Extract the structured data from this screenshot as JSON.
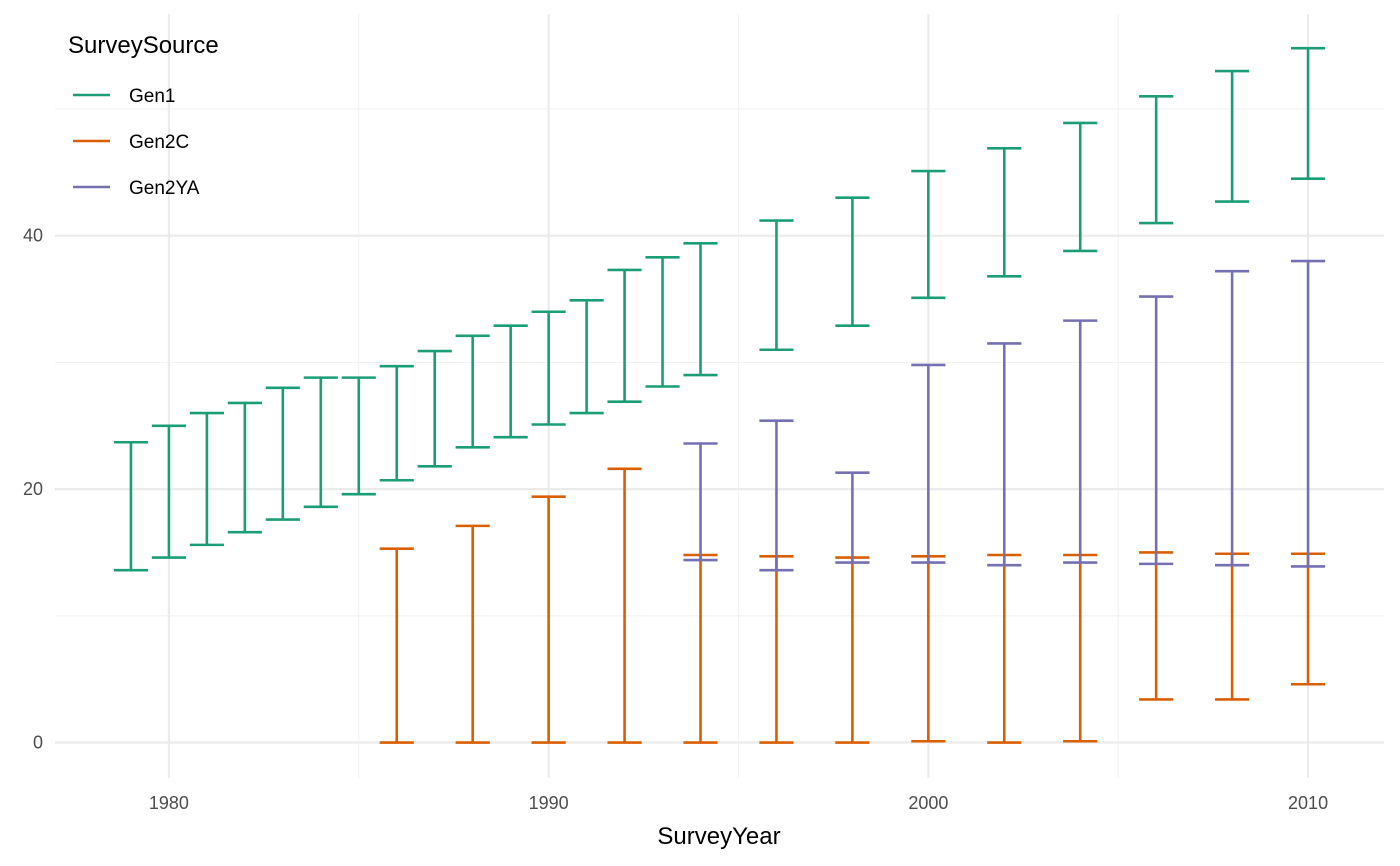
{
  "chart_data": {
    "type": "errorbar",
    "xlabel": "SurveyYear",
    "ylabel": "",
    "xlim": [
      1977,
      2012
    ],
    "ylim": [
      -2.8,
      57.5
    ],
    "x_ticks": [
      1980,
      1990,
      2000,
      2010
    ],
    "y_ticks": [
      0,
      20,
      40
    ],
    "grid": true,
    "legend": {
      "title": "SurveySource",
      "position": "top-left"
    },
    "series": [
      {
        "name": "Gen1",
        "color": "#1B9E77",
        "points": [
          {
            "x": 1979,
            "low": 13.6,
            "high": 23.7
          },
          {
            "x": 1980,
            "low": 14.6,
            "high": 25.0
          },
          {
            "x": 1981,
            "low": 15.6,
            "high": 26.0
          },
          {
            "x": 1982,
            "low": 16.6,
            "high": 26.8
          },
          {
            "x": 1983,
            "low": 17.6,
            "high": 28.0
          },
          {
            "x": 1984,
            "low": 18.6,
            "high": 28.8
          },
          {
            "x": 1985,
            "low": 19.6,
            "high": 28.8
          },
          {
            "x": 1986,
            "low": 20.7,
            "high": 29.7
          },
          {
            "x": 1987,
            "low": 21.8,
            "high": 30.9
          },
          {
            "x": 1988,
            "low": 23.3,
            "high": 32.1
          },
          {
            "x": 1989,
            "low": 24.1,
            "high": 32.9
          },
          {
            "x": 1990,
            "low": 25.1,
            "high": 34.0
          },
          {
            "x": 1991,
            "low": 26.0,
            "high": 34.9
          },
          {
            "x": 1992,
            "low": 26.9,
            "high": 37.3
          },
          {
            "x": 1993,
            "low": 28.1,
            "high": 38.3
          },
          {
            "x": 1994,
            "low": 29.0,
            "high": 39.4
          },
          {
            "x": 1996,
            "low": 31.0,
            "high": 41.2
          },
          {
            "x": 1998,
            "low": 32.9,
            "high": 43.0
          },
          {
            "x": 2000,
            "low": 35.1,
            "high": 45.1
          },
          {
            "x": 2002,
            "low": 36.8,
            "high": 46.9
          },
          {
            "x": 2004,
            "low": 38.8,
            "high": 48.9
          },
          {
            "x": 2006,
            "low": 41.0,
            "high": 51.0
          },
          {
            "x": 2008,
            "low": 42.7,
            "high": 53.0
          },
          {
            "x": 2010,
            "low": 44.5,
            "high": 54.8
          }
        ]
      },
      {
        "name": "Gen2C",
        "color": "#D95F02",
        "points": [
          {
            "x": 1986,
            "low": 0.0,
            "high": 15.3
          },
          {
            "x": 1988,
            "low": 0.0,
            "high": 17.1
          },
          {
            "x": 1990,
            "low": 0.0,
            "high": 19.4
          },
          {
            "x": 1992,
            "low": 0.0,
            "high": 21.6
          },
          {
            "x": 1994,
            "low": 0.0,
            "high": 14.8
          },
          {
            "x": 1996,
            "low": 0.0,
            "high": 14.7
          },
          {
            "x": 1998,
            "low": 0.0,
            "high": 14.6
          },
          {
            "x": 2000,
            "low": 0.1,
            "high": 14.7
          },
          {
            "x": 2002,
            "low": 0.0,
            "high": 14.8
          },
          {
            "x": 2004,
            "low": 0.1,
            "high": 14.8
          },
          {
            "x": 2006,
            "low": 3.4,
            "high": 15.0
          },
          {
            "x": 2008,
            "low": 3.4,
            "high": 14.9
          },
          {
            "x": 2010,
            "low": 4.6,
            "high": 14.9
          }
        ]
      },
      {
        "name": "Gen2YA",
        "color": "#7570B3",
        "points": [
          {
            "x": 1994,
            "low": 14.4,
            "high": 23.6
          },
          {
            "x": 1996,
            "low": 13.6,
            "high": 25.4
          },
          {
            "x": 1998,
            "low": 14.2,
            "high": 21.3
          },
          {
            "x": 2000,
            "low": 14.2,
            "high": 29.8
          },
          {
            "x": 2002,
            "low": 14.0,
            "high": 31.5
          },
          {
            "x": 2004,
            "low": 14.2,
            "high": 33.3
          },
          {
            "x": 2006,
            "low": 14.1,
            "high": 35.2
          },
          {
            "x": 2008,
            "low": 14.0,
            "high": 37.2
          },
          {
            "x": 2010,
            "low": 13.9,
            "high": 38.0
          }
        ]
      }
    ]
  }
}
